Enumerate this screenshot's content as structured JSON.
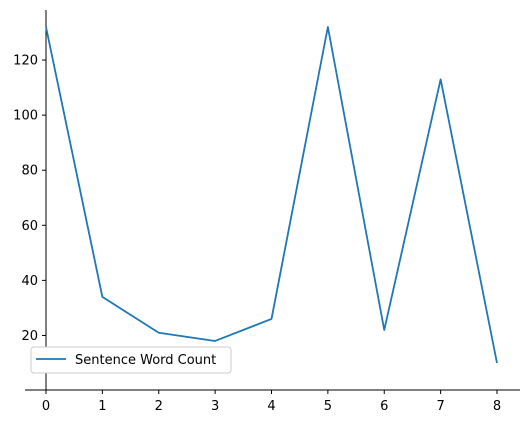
{
  "chart_data": {
    "type": "line",
    "title": "",
    "xlabel": "",
    "ylabel": "",
    "x": [
      0,
      1,
      2,
      3,
      4,
      5,
      6,
      7,
      8
    ],
    "series": [
      {
        "name": "Sentence Word Count",
        "values": [
          132,
          34,
          21,
          18,
          26,
          132,
          22,
          113,
          10
        ],
        "color": "#1f77b4"
      }
    ],
    "xlim": [
      -0.4,
      8.4
    ],
    "ylim": [
      5,
      138
    ],
    "x_ticks": [
      "0",
      "1",
      "2",
      "3",
      "4",
      "5",
      "6",
      "7",
      "8"
    ],
    "y_ticks": [
      "20",
      "40",
      "60",
      "80",
      "100",
      "120"
    ],
    "grid": false,
    "legend_position": "lower-left"
  }
}
